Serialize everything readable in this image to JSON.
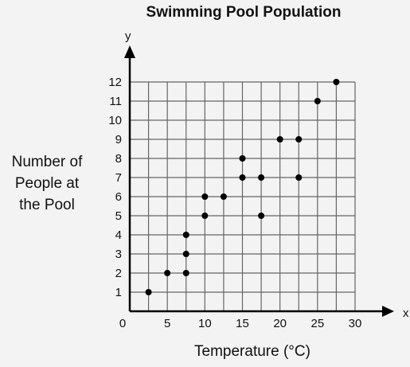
{
  "chart_data": {
    "type": "scatter",
    "title": "Swimming Pool Population",
    "xlabel": "Temperature (°C)",
    "ylabel_lines": [
      "Number of",
      "People at",
      "the Pool"
    ],
    "x_axis_letter": "x",
    "y_axis_letter": "y",
    "xlim": [
      0,
      30
    ],
    "ylim": [
      0,
      12
    ],
    "x_ticks": [
      0,
      5,
      10,
      15,
      20,
      25,
      30
    ],
    "y_ticks": [
      1,
      2,
      3,
      4,
      5,
      6,
      7,
      8,
      9,
      10,
      11,
      12
    ],
    "grid": true,
    "grid_step_x": 2.5,
    "grid_step_y": 1,
    "points": [
      {
        "x": 2.5,
        "y": 1
      },
      {
        "x": 5,
        "y": 2
      },
      {
        "x": 7.5,
        "y": 2
      },
      {
        "x": 7.5,
        "y": 3
      },
      {
        "x": 7.5,
        "y": 4
      },
      {
        "x": 10,
        "y": 5
      },
      {
        "x": 10,
        "y": 6
      },
      {
        "x": 12.5,
        "y": 6
      },
      {
        "x": 15,
        "y": 7
      },
      {
        "x": 15,
        "y": 8
      },
      {
        "x": 17.5,
        "y": 5
      },
      {
        "x": 17.5,
        "y": 7
      },
      {
        "x": 20,
        "y": 9
      },
      {
        "x": 22.5,
        "y": 7
      },
      {
        "x": 22.5,
        "y": 9
      },
      {
        "x": 25,
        "y": 11
      },
      {
        "x": 27.5,
        "y": 12
      }
    ]
  }
}
